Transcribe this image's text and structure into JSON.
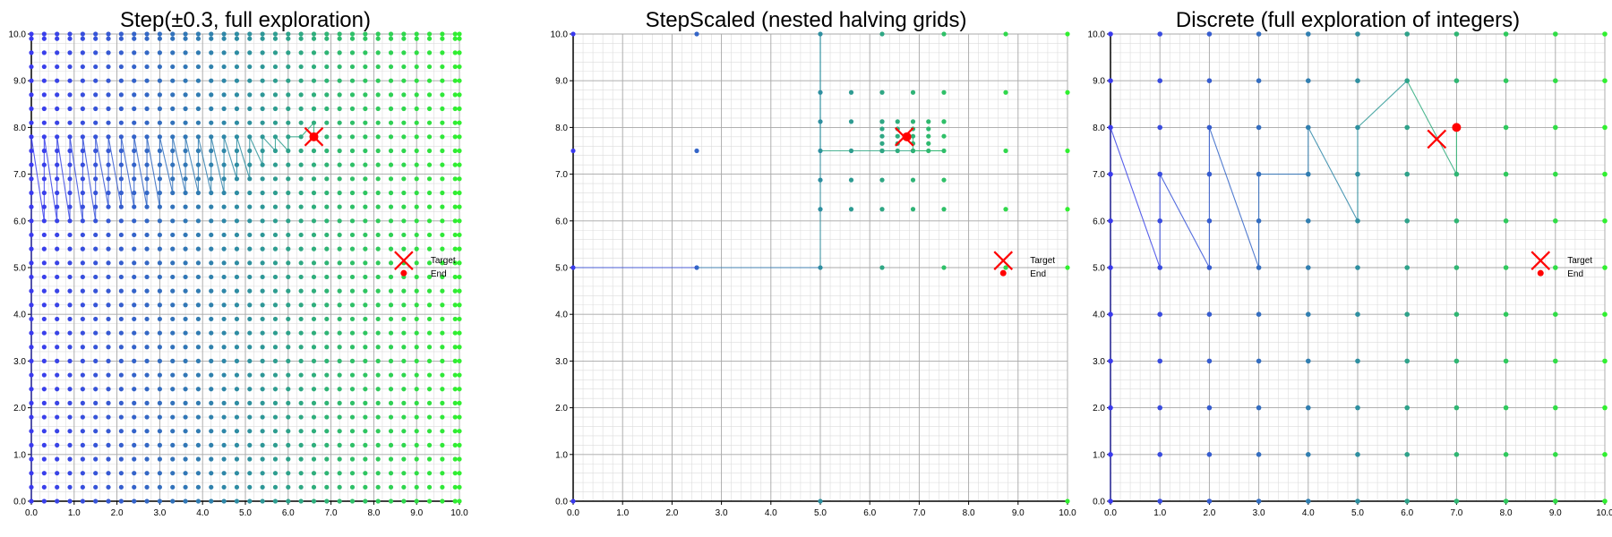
{
  "chart_data": [
    {
      "type": "scatter",
      "title": "Step(±0.3, full exploration)",
      "xlabel": "",
      "ylabel": "",
      "xlim": [
        0,
        10
      ],
      "ylim": [
        0,
        10
      ],
      "x_ticks": [
        "0.0",
        "1.0",
        "2.0",
        "3.0",
        "4.0",
        "5.0",
        "6.0",
        "7.0",
        "8.0",
        "9.0",
        "10.0"
      ],
      "y_ticks": [
        "0.0",
        "1.0",
        "2.0",
        "3.0",
        "4.0",
        "5.0",
        "6.0",
        "7.0",
        "8.0",
        "9.0",
        "10.0"
      ],
      "grid": true,
      "explored_points": "grid x,y in {0,0.3,...,9.9,10}",
      "grid_step": 0.3,
      "path_columns": [
        {
          "x": 0.0,
          "low": 0.0,
          "high": 7.8
        },
        {
          "x": 0.3,
          "low": 6.0,
          "high": 7.8
        },
        {
          "x": 0.6,
          "low": 6.0,
          "high": 7.8
        },
        {
          "x": 0.9,
          "low": 6.0,
          "high": 7.8
        },
        {
          "x": 1.2,
          "low": 6.0,
          "high": 7.8
        },
        {
          "x": 1.5,
          "low": 6.0,
          "high": 7.8
        },
        {
          "x": 1.8,
          "low": 6.3,
          "high": 7.8
        },
        {
          "x": 2.1,
          "low": 6.3,
          "high": 7.8
        },
        {
          "x": 2.4,
          "low": 6.3,
          "high": 7.8
        },
        {
          "x": 2.7,
          "low": 6.3,
          "high": 7.8
        },
        {
          "x": 3.0,
          "low": 6.3,
          "high": 7.8
        },
        {
          "x": 3.3,
          "low": 6.6,
          "high": 7.8
        },
        {
          "x": 3.6,
          "low": 6.6,
          "high": 7.8
        },
        {
          "x": 3.9,
          "low": 6.6,
          "high": 7.8
        },
        {
          "x": 4.2,
          "low": 6.6,
          "high": 7.8
        },
        {
          "x": 4.5,
          "low": 6.6,
          "high": 7.8
        },
        {
          "x": 4.8,
          "low": 6.9,
          "high": 7.8
        },
        {
          "x": 5.1,
          "low": 6.9,
          "high": 7.8
        },
        {
          "x": 5.4,
          "low": 7.2,
          "high": 7.8
        },
        {
          "x": 5.7,
          "low": 7.5,
          "high": 7.8
        },
        {
          "x": 6.0,
          "low": 7.5,
          "high": 7.8
        },
        {
          "x": 6.3,
          "low": 7.8,
          "high": 7.8
        }
      ],
      "path_tail": [
        [
          6.3,
          7.8
        ],
        [
          6.6,
          8.1
        ],
        [
          6.6,
          7.8
        ]
      ],
      "target": [
        6.6,
        7.8
      ],
      "end": [
        6.6,
        7.8
      ],
      "legend": {
        "target": "Target",
        "end": "End",
        "x": 8.7,
        "y": 5.15
      }
    },
    {
      "type": "scatter",
      "title": "StepScaled (nested halving grids)",
      "xlim": [
        0,
        10
      ],
      "ylim": [
        0,
        10
      ],
      "x_ticks": [
        "0.0",
        "1.0",
        "2.0",
        "3.0",
        "4.0",
        "5.0",
        "6.0",
        "7.0",
        "8.0",
        "9.0",
        "10.0"
      ],
      "y_ticks": [
        "0.0",
        "1.0",
        "2.0",
        "3.0",
        "4.0",
        "5.0",
        "6.0",
        "7.0",
        "8.0",
        "9.0",
        "10.0"
      ],
      "grid": true,
      "points": [
        [
          0,
          0
        ],
        [
          0,
          5
        ],
        [
          0,
          7.5
        ],
        [
          0,
          10
        ],
        [
          2.5,
          5
        ],
        [
          2.5,
          7.5
        ],
        [
          2.5,
          10
        ],
        [
          5,
          0
        ],
        [
          5,
          5
        ],
        [
          5,
          7.5
        ],
        [
          5,
          10
        ],
        [
          10,
          0
        ],
        [
          10,
          5
        ],
        [
          10,
          7.5
        ],
        [
          10,
          10
        ],
        [
          6.25,
          10
        ],
        [
          7.5,
          10
        ],
        [
          8.75,
          10
        ],
        [
          8.75,
          8.75
        ],
        [
          10,
          8.75
        ],
        [
          8.75,
          7.5
        ],
        [
          8.75,
          6.25
        ],
        [
          10,
          6.25
        ],
        [
          8.75,
          5
        ],
        [
          6.25,
          5
        ],
        [
          7.5,
          5
        ],
        [
          5,
          6.25
        ],
        [
          5,
          6.875
        ],
        [
          5,
          8.125
        ],
        [
          5,
          8.75
        ],
        [
          5.625,
          8.75
        ],
        [
          6.25,
          8.75
        ],
        [
          6.875,
          8.75
        ],
        [
          7.5,
          8.75
        ],
        [
          5.625,
          8.125
        ],
        [
          5.625,
          7.5
        ],
        [
          5.625,
          6.875
        ],
        [
          5.625,
          6.25
        ],
        [
          6.25,
          6.25
        ],
        [
          6.875,
          6.25
        ],
        [
          7.5,
          6.25
        ],
        [
          6.25,
          6.875
        ],
        [
          6.875,
          6.875
        ],
        [
          7.5,
          6.875
        ],
        [
          6.25,
          7.5
        ],
        [
          6.875,
          7.5
        ],
        [
          7.5,
          7.5
        ],
        [
          7.5,
          8.125
        ],
        [
          7.5,
          7.8125
        ],
        [
          6.25,
          8.125
        ],
        [
          6.5625,
          8.125
        ],
        [
          6.875,
          8.125
        ],
        [
          7.1875,
          8.125
        ],
        [
          7.5,
          8.125
        ],
        [
          6.25,
          7.8125
        ],
        [
          6.5625,
          7.8125
        ],
        [
          6.875,
          7.8125
        ],
        [
          7.1875,
          7.8125
        ],
        [
          6.25,
          7.5
        ],
        [
          6.5625,
          7.5
        ],
        [
          6.875,
          7.5
        ],
        [
          7.1875,
          7.5
        ],
        [
          6.25,
          8.125
        ],
        [
          6.25,
          7.96875
        ],
        [
          6.5625,
          7.96875
        ],
        [
          6.875,
          7.96875
        ],
        [
          7.1875,
          7.96875
        ],
        [
          7.1875,
          7.65625
        ],
        [
          6.25,
          7.65625
        ],
        [
          6.5625,
          7.65625
        ],
        [
          6.875,
          7.65625
        ]
      ],
      "path": [
        [
          0,
          5
        ],
        [
          2.5,
          5
        ],
        [
          5,
          5
        ],
        [
          5,
          10
        ],
        [
          5,
          7.5
        ],
        [
          7.5,
          7.5
        ],
        [
          6.875,
          7.5
        ],
        [
          6.875,
          7.8125
        ],
        [
          6.7,
          7.8
        ]
      ],
      "target": [
        6.7,
        7.8
      ],
      "end": [
        6.75,
        7.8
      ],
      "legend": {
        "target": "Target",
        "end": "End",
        "x": 8.7,
        "y": 5.15
      }
    },
    {
      "type": "scatter",
      "title": "Discrete (full exploration of integers)",
      "xlim": [
        0,
        10
      ],
      "ylim": [
        0,
        10
      ],
      "x_ticks": [
        "0.0",
        "1.0",
        "2.0",
        "3.0",
        "4.0",
        "5.0",
        "6.0",
        "7.0",
        "8.0",
        "9.0",
        "10.0"
      ],
      "y_ticks": [
        "0.0",
        "1.0",
        "2.0",
        "3.0",
        "4.0",
        "5.0",
        "6.0",
        "7.0",
        "8.0",
        "9.0",
        "10.0"
      ],
      "grid": true,
      "explored_points": "all integer x,y in 0..10",
      "grid_step": 1,
      "path": [
        [
          0,
          0
        ],
        [
          0,
          8
        ],
        [
          1,
          5
        ],
        [
          1,
          7
        ],
        [
          2,
          5
        ],
        [
          2,
          8
        ],
        [
          3,
          5
        ],
        [
          3,
          7
        ],
        [
          4,
          7
        ],
        [
          4,
          8
        ],
        [
          5,
          6
        ],
        [
          5,
          8
        ],
        [
          6,
          9
        ],
        [
          7,
          7
        ],
        [
          7,
          8
        ]
      ],
      "target": [
        6.6,
        7.75
      ],
      "end": [
        7,
        8
      ],
      "legend": {
        "target": "Target",
        "end": "End",
        "x": 8.7,
        "y": 5.15
      }
    }
  ],
  "panels": [
    {
      "title": "Step(±0.3, full exploration)"
    },
    {
      "title": "StepScaled (nested halving grids)"
    },
    {
      "title": "Discrete (full exploration of integers)"
    }
  ],
  "colors": {
    "start": "#3a3af0",
    "mid": "#2e8fa0",
    "end": "#30f030",
    "marker": "#ff0000",
    "grid_major": "#a8a8a8",
    "grid_minor": "#dcdcdc",
    "axis": "#000000"
  }
}
